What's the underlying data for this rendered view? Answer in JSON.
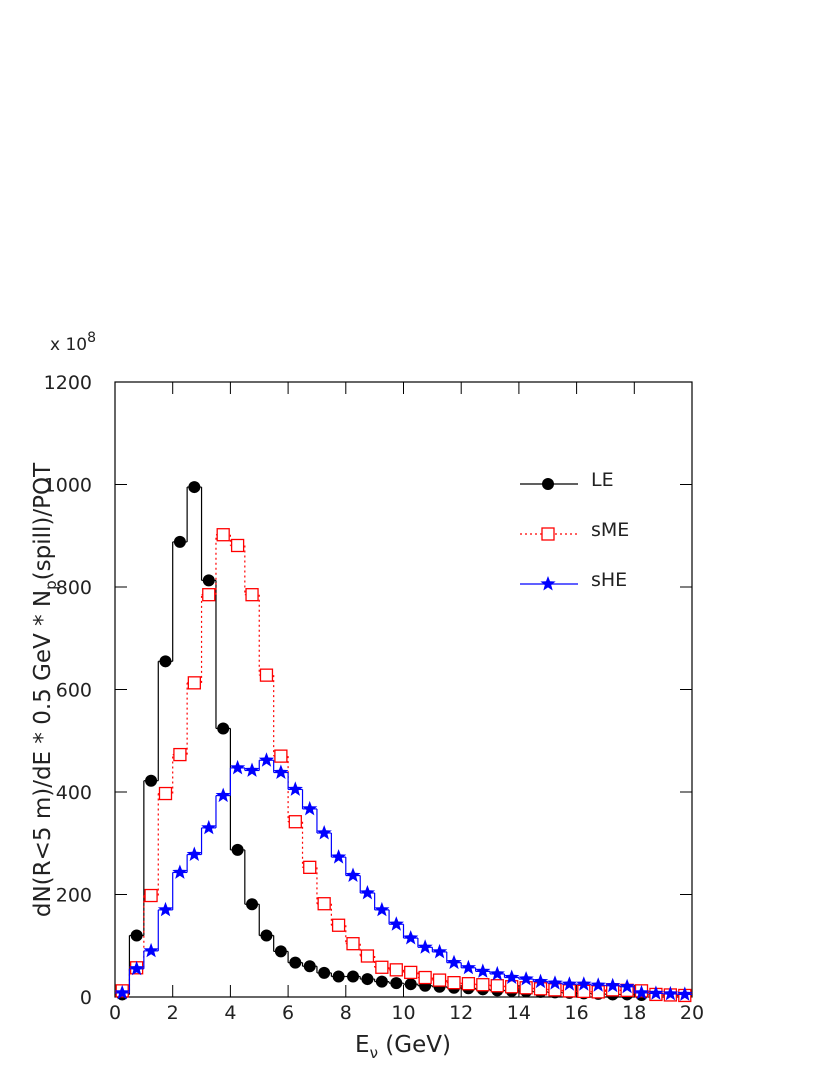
{
  "chart_data": {
    "type": "histogram",
    "y_multiplier": {
      "base": "x 10",
      "exp": "8"
    },
    "x_label": {
      "main": "E",
      "sub": "ν",
      "rest": " (GeV)"
    },
    "y_label": {
      "main": "dN(R<5 m)/dE * 0.5 GeV * N",
      "sub": "p",
      "rest": "(spill)/POT"
    },
    "bins": [
      0,
      0.5,
      1,
      1.5,
      2,
      2.5,
      3,
      3.5,
      4,
      4.5,
      5,
      5.5,
      6,
      6.5,
      7,
      7.5,
      8,
      8.5,
      9,
      9.5,
      10,
      10.5,
      11,
      11.5,
      12,
      12.5,
      13,
      13.5,
      14,
      14.5,
      15,
      15.5,
      16,
      16.5,
      17,
      17.5,
      18,
      18.5,
      19,
      19.5,
      20
    ],
    "series": [
      {
        "name": "LE",
        "color": "#000000",
        "line": "solid",
        "marker": "circle",
        "values": [
          5,
          120,
          422,
          655,
          888,
          995,
          813,
          524,
          287,
          181,
          120,
          89,
          67,
          60,
          47,
          40,
          40,
          35,
          30,
          27,
          25,
          22,
          20,
          18,
          17,
          15,
          13,
          12,
          11,
          10,
          9,
          8,
          7,
          6,
          5,
          5,
          4,
          4,
          3,
          3
        ]
      },
      {
        "name": "sME",
        "color": "#ff0000",
        "line": "dotted",
        "marker": "square",
        "values": [
          12,
          57,
          198,
          397,
          473,
          613,
          785,
          902,
          881,
          785,
          628,
          470,
          342,
          253,
          182,
          140,
          104,
          80,
          58,
          53,
          48,
          38,
          33,
          28,
          26,
          24,
          22,
          20,
          18,
          16,
          14,
          12,
          11,
          10,
          14,
          13,
          12,
          5,
          4,
          3
        ]
      },
      {
        "name": "sHE",
        "color": "#0000ff",
        "line": "solid",
        "marker": "star",
        "values": [
          8,
          55,
          90,
          170,
          243,
          278,
          330,
          393,
          447,
          442,
          462,
          438,
          405,
          367,
          320,
          273,
          237,
          203,
          170,
          142,
          115,
          97,
          88,
          67,
          57,
          50,
          45,
          38,
          35,
          30,
          27,
          25,
          25,
          23,
          22,
          20,
          8,
          7,
          6,
          5
        ]
      }
    ],
    "xlim": [
      0,
      20
    ],
    "xticks": [
      0,
      2,
      4,
      6,
      8,
      10,
      12,
      14,
      16,
      18,
      20
    ],
    "ylim": [
      0,
      1200
    ],
    "yticks": [
      0,
      200,
      400,
      600,
      800,
      1000,
      1200
    ],
    "legend": "upper-right"
  }
}
